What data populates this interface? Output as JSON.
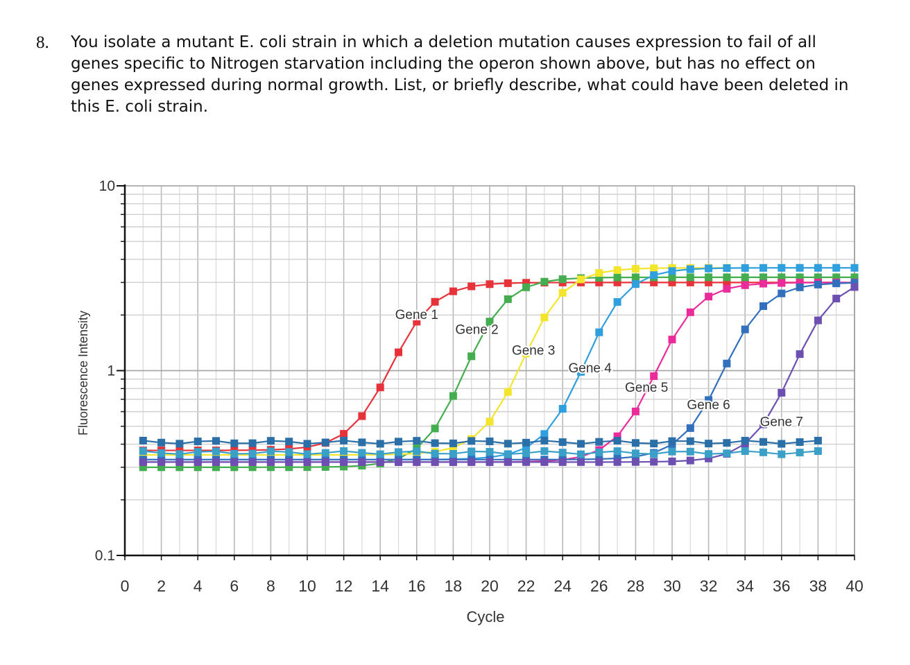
{
  "question": {
    "number": "8.",
    "text": "You isolate a mutant E. coli strain in which a deletion mutation causes expression to fail of all genes specific to Nitrogen starvation including the operon shown above, but has no effect on genes expressed during normal growth. List, or briefly describe, what could have been deleted in this E. coli strain."
  },
  "chart_data": {
    "type": "line",
    "title": "",
    "xlabel": "Cycle",
    "ylabel": "Fluorescence Intensity",
    "y_scale": "log",
    "xlim": [
      0,
      40
    ],
    "ylim": [
      0.1,
      10
    ],
    "x_ticks": [
      "0",
      "2",
      "4",
      "6",
      "8",
      "10",
      "12",
      "14",
      "16",
      "18",
      "20",
      "22",
      "24",
      "26",
      "28",
      "30",
      "32",
      "34",
      "36",
      "38",
      "40"
    ],
    "y_ticks": [
      {
        "value": 10,
        "label": "10"
      },
      {
        "value": 1,
        "label": "1"
      },
      {
        "value": 0.1,
        "label": "0.1"
      }
    ],
    "grid": true,
    "legend": "none",
    "markers": "square",
    "series": [
      {
        "name": "Gene 1",
        "color": "#e8323a",
        "label_at": [
          16,
          1.9
        ],
        "midpoint": 14.6,
        "baseline": 0.37,
        "plateau": 3.0,
        "slope": 0.85,
        "x_end": 39
      },
      {
        "name": "Gene 2",
        "color": "#43ad4f",
        "label_at": [
          19.3,
          1.58
        ],
        "midpoint": 18.6,
        "baseline": 0.3,
        "plateau": 3.2,
        "slope": 0.85,
        "x_end": 40
      },
      {
        "name": "Gene 3",
        "color": "#f3e52c",
        "label_at": [
          22.4,
          1.22
        ],
        "midpoint": 21.8,
        "baseline": 0.35,
        "plateau": 3.6,
        "slope": 0.85,
        "x_end": 33
      },
      {
        "name": "Gene 4",
        "color": "#2f9fde",
        "label_at": [
          25.5,
          0.98
        ],
        "midpoint": 25.2,
        "baseline": 0.33,
        "plateau": 3.6,
        "slope": 0.85,
        "x_end": 40
      },
      {
        "name": "Gene 5",
        "color": "#ec2b9b",
        "label_at": [
          28.6,
          0.77
        ],
        "midpoint": 29.1,
        "baseline": 0.32,
        "plateau": 3.0,
        "slope": 0.85,
        "x_end": 40
      },
      {
        "name": "Gene 6",
        "color": "#3270bd",
        "label_at": [
          32,
          0.62
        ],
        "midpoint": 32.8,
        "baseline": 0.33,
        "plateau": 3.0,
        "slope": 0.85,
        "x_end": 40
      },
      {
        "name": "Gene 7",
        "color": "#6c4fb1",
        "label_at": [
          36,
          0.5
        ],
        "midpoint": 36.6,
        "baseline": 0.32,
        "plateau": 3.2,
        "slope": 0.85,
        "x_end": 40
      },
      {
        "name": "",
        "color": "#2a6fa8",
        "label_at": null,
        "flat": 0.41,
        "x_end": 38
      },
      {
        "name": "",
        "color": "#3aa0c8",
        "label_at": null,
        "flat": 0.36,
        "x_end": 38
      }
    ]
  }
}
